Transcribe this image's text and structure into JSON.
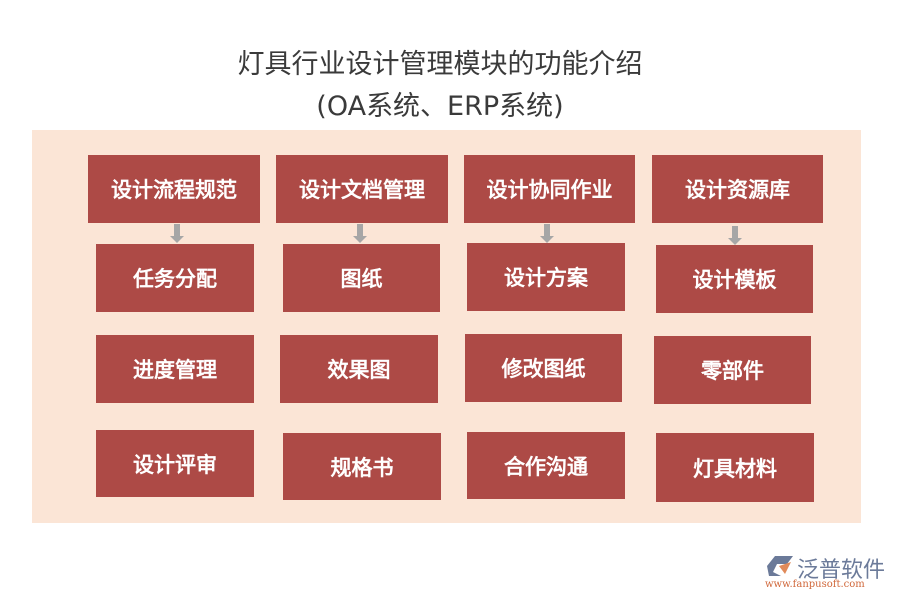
{
  "title": {
    "line1": "灯具行业设计管理模块的功能介绍",
    "line2": "(OA系统、ERP系统)"
  },
  "colors": {
    "box": "#ad4a46",
    "panel": "#fbe5d6",
    "arrow": "#a6a6a6"
  },
  "columns": [
    {
      "header": "设计流程规范",
      "items": [
        "任务分配",
        "进度管理",
        "设计评审"
      ]
    },
    {
      "header": "设计文档管理",
      "items": [
        "图纸",
        "效果图",
        "规格书"
      ]
    },
    {
      "header": "设计协同作业",
      "items": [
        "设计方案",
        "修改图纸",
        "合作沟通"
      ]
    },
    {
      "header": "设计资源库",
      "items": [
        "设计模板",
        "零部件",
        "灯具材料"
      ]
    }
  ],
  "logo": {
    "name": "泛普软件",
    "url": "www.fanpusoft.com"
  }
}
